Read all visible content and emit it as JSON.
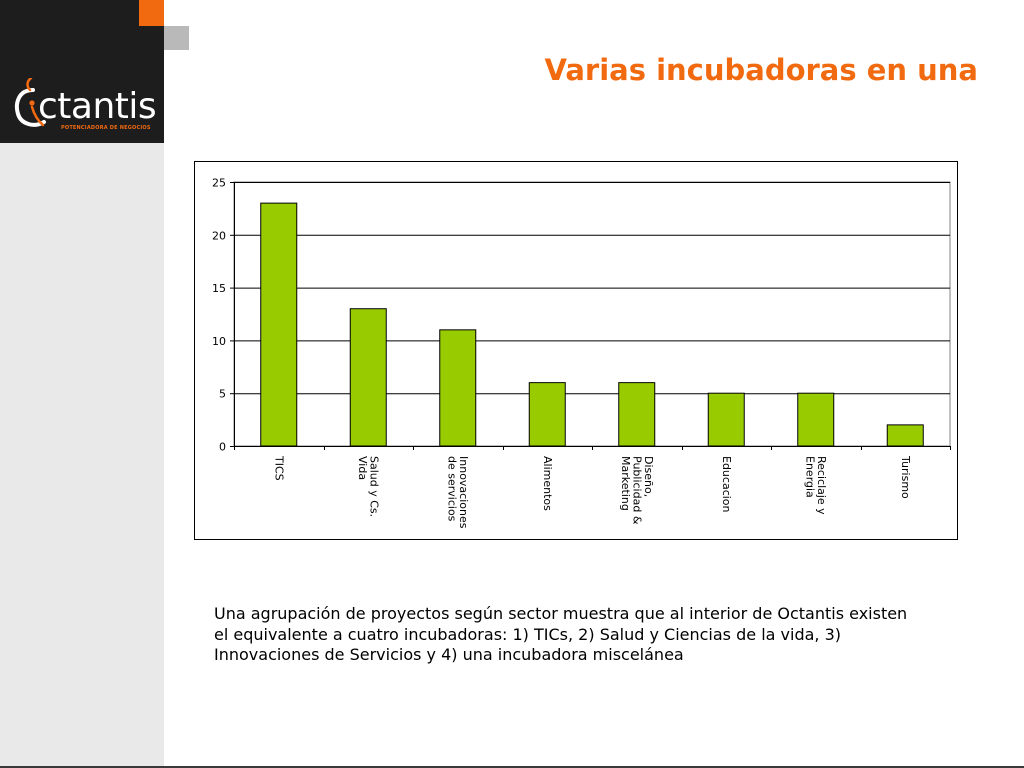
{
  "slide": {
    "title": "Varias incubadoras en una",
    "caption": "Una agrupación de proyectos según sector muestra que al interior de Octantis existen el equivalente a cuatro incubadoras: 1) TICs, 2) Salud y Ciencias de la vida, 3) Innovaciones de Servicios y 4) una incubadora miscelánea"
  },
  "logo": {
    "name": "Octantis",
    "text": "ctantis",
    "tagline": "POTENCIADORA DE NEGOCIOS"
  },
  "colors": {
    "accent": "#f26a10",
    "bar_fill": "#99cc00",
    "dark": "#1d1d1d"
  },
  "chart_data": {
    "type": "bar",
    "categories": [
      [
        "TICS"
      ],
      [
        "Salud y Cs.",
        "Vida"
      ],
      [
        "Innovaciones",
        "de servicios"
      ],
      [
        "Alimentos"
      ],
      [
        "Diseño,",
        "Publicidad &",
        "Marketing"
      ],
      [
        "Educacion"
      ],
      [
        "Reciclaje y",
        "Energia"
      ],
      [
        "Turismo"
      ]
    ],
    "values": [
      23,
      13,
      11,
      6,
      6,
      5,
      5,
      2
    ],
    "ylim": [
      0,
      25
    ],
    "yticks": [
      0,
      5,
      10,
      15,
      20,
      25
    ],
    "grid": true,
    "legend": "none",
    "tick_label_rotation": "vertical"
  }
}
